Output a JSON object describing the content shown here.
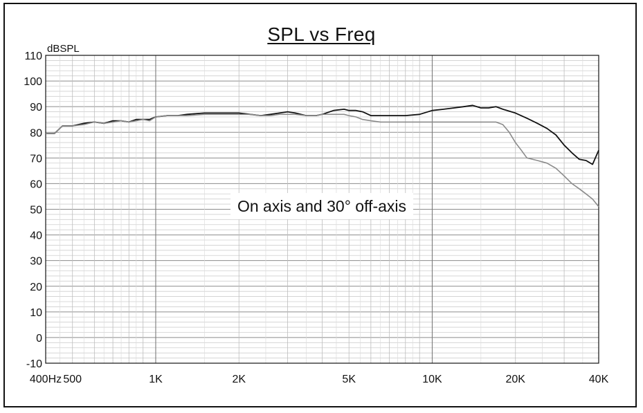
{
  "chart_data": {
    "type": "line",
    "title": "SPL vs Freq",
    "xlabel": "",
    "ylabel": "dBSPL",
    "xscale": "log",
    "xlim": [
      400,
      40000
    ],
    "ylim": [
      -10,
      110
    ],
    "grid": true,
    "y_ticks": [
      "110",
      "100",
      "90",
      "80",
      "70",
      "60",
      "50",
      "40",
      "30",
      "20",
      "10",
      "0",
      "-10"
    ],
    "x_ticks": [
      {
        "value": 400,
        "label": "400Hz"
      },
      {
        "value": 500,
        "label": "500"
      },
      {
        "value": 1000,
        "label": "1K"
      },
      {
        "value": 2000,
        "label": "2K"
      },
      {
        "value": 5000,
        "label": "5K"
      },
      {
        "value": 10000,
        "label": "10K"
      },
      {
        "value": 20000,
        "label": "20K"
      },
      {
        "value": 40000,
        "label": "40K"
      }
    ],
    "annotation": "On axis and 30° off-axis",
    "series": [
      {
        "color": "#111111",
        "x": [
          400,
          430,
          460,
          500,
          550,
          600,
          650,
          700,
          750,
          800,
          850,
          900,
          950,
          1000,
          1100,
          1200,
          1300,
          1500,
          1700,
          2000,
          2200,
          2400,
          2600,
          2800,
          3000,
          3200,
          3500,
          3800,
          4000,
          4400,
          4800,
          5000,
          5300,
          5600,
          6000,
          6500,
          7000,
          8000,
          9000,
          10000,
          11000,
          12000,
          13000,
          14000,
          15000,
          16000,
          17000,
          18000,
          20000,
          22000,
          24000,
          26000,
          28000,
          30000,
          32000,
          34000,
          36000,
          38000,
          40000
        ],
        "y": [
          79.5,
          79.5,
          82.5,
          82.5,
          83.5,
          84,
          83.5,
          84.5,
          84.5,
          84,
          85,
          85,
          85,
          86,
          86.5,
          86.5,
          87,
          87.5,
          87.5,
          87.5,
          87,
          86.5,
          87,
          87.5,
          88,
          87.5,
          86.5,
          86.5,
          87,
          88.5,
          89,
          88.5,
          88.5,
          88,
          86.5,
          86.5,
          86.5,
          86.5,
          87,
          88.5,
          89,
          89.5,
          90,
          90.5,
          89.5,
          89.5,
          90,
          89,
          87.5,
          85.5,
          83.5,
          81.5,
          79,
          75,
          72,
          69.5,
          69,
          67.5,
          73
        ]
      },
      {
        "color": "#8a8a8a",
        "x": [
          400,
          430,
          460,
          500,
          550,
          600,
          650,
          700,
          750,
          800,
          850,
          900,
          950,
          1000,
          1100,
          1200,
          1300,
          1500,
          1700,
          2000,
          2200,
          2400,
          2600,
          2800,
          3000,
          3200,
          3500,
          3800,
          4000,
          4400,
          4800,
          5000,
          5300,
          5600,
          6000,
          6500,
          7000,
          8000,
          9000,
          10000,
          11000,
          12000,
          13000,
          14000,
          15000,
          16000,
          17000,
          18000,
          19000,
          20000,
          21000,
          22000,
          24000,
          26000,
          28000,
          30000,
          32000,
          34000,
          36000,
          38000,
          40000
        ],
        "y": [
          79.5,
          79.5,
          82.5,
          82.5,
          83,
          84,
          83.5,
          84,
          84.5,
          84,
          84.5,
          85,
          84.5,
          86,
          86.5,
          86.5,
          86.5,
          87,
          87,
          87,
          87,
          86.5,
          86.5,
          87,
          87,
          87,
          86.5,
          86.5,
          87,
          87,
          87,
          86.5,
          86,
          85,
          84.5,
          84,
          84,
          84,
          84,
          84,
          84,
          84,
          84,
          84,
          84,
          84,
          84,
          83,
          80,
          76,
          73,
          70,
          69,
          68,
          66,
          63,
          60,
          58,
          56,
          54,
          51
        ]
      }
    ]
  }
}
